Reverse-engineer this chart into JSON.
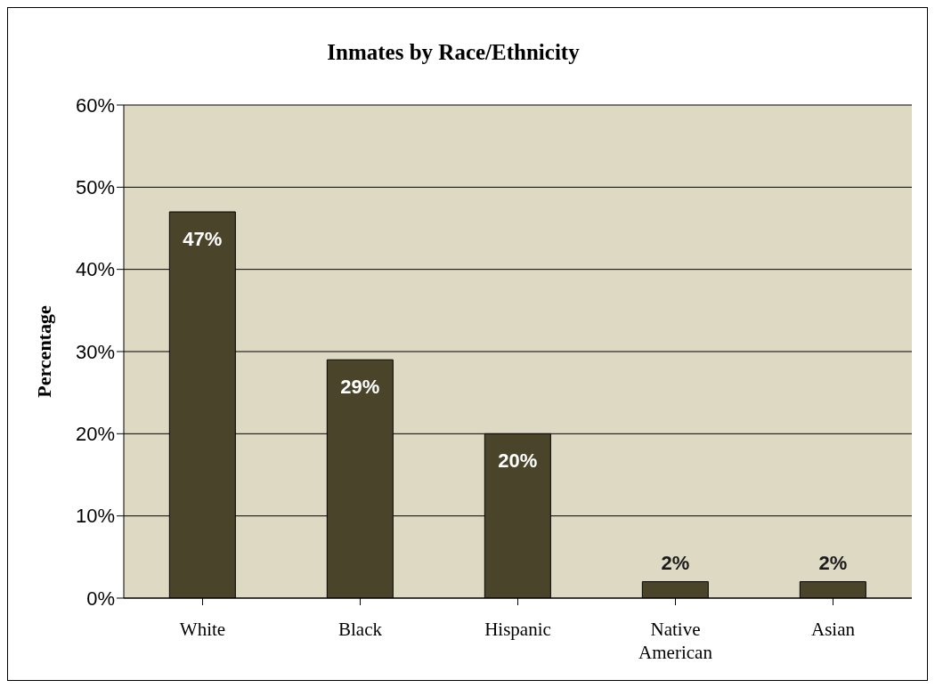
{
  "chart_data": {
    "type": "bar",
    "title": "Inmates by Race/Ethnicity",
    "ylabel": "Percentage",
    "categories": [
      "White",
      "Black",
      "Hispanic",
      "Native American",
      "Asian"
    ],
    "values": [
      47,
      29,
      20,
      2,
      2
    ],
    "value_labels": [
      "47%",
      "29%",
      "20%",
      "2%",
      "2%"
    ],
    "color": "#4a452a",
    "ylim": [
      0,
      60
    ],
    "yticks": [
      {
        "value": 0,
        "label": "0%"
      },
      {
        "value": 10,
        "label": "10%"
      },
      {
        "value": 20,
        "label": "20%"
      },
      {
        "value": 30,
        "label": "30%"
      },
      {
        "value": 40,
        "label": "40%"
      },
      {
        "value": 50,
        "label": "50%"
      },
      {
        "value": 60,
        "label": "60%"
      }
    ],
    "grid": "y"
  }
}
